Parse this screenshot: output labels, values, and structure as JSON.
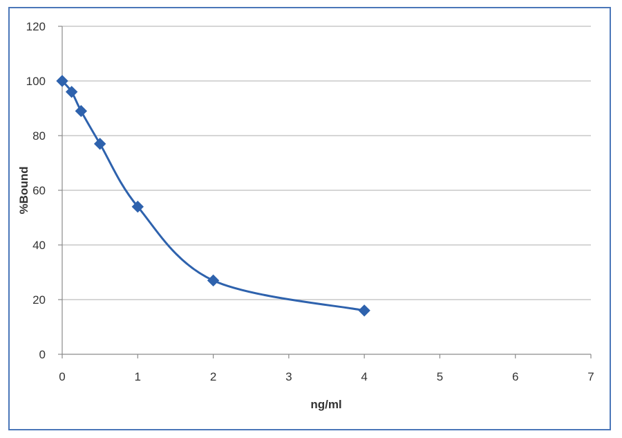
{
  "chart_data": {
    "type": "scatter",
    "title": "",
    "xlabel": "ng/ml",
    "ylabel": "%Bound",
    "xlim": [
      0,
      7
    ],
    "ylim": [
      0,
      120
    ],
    "xticks": [
      0,
      1,
      2,
      3,
      4,
      5,
      6,
      7
    ],
    "yticks": [
      0,
      20,
      40,
      60,
      80,
      100,
      120
    ],
    "grid": "horizontal",
    "legend": "none",
    "line": "smoothed",
    "marker": "diamond",
    "color": "#2e62ad",
    "series": [
      {
        "x": [
          0,
          0.125,
          0.25,
          0.5,
          1,
          2,
          4
        ],
        "y": [
          100,
          96,
          89,
          77,
          54,
          27,
          16
        ]
      }
    ]
  }
}
